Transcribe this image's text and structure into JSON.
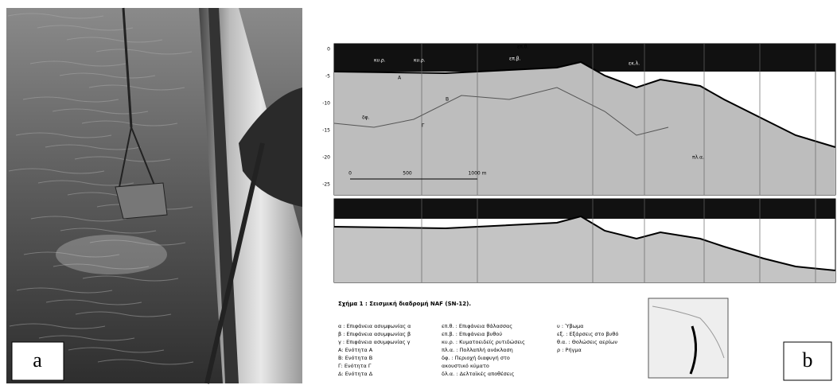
{
  "panel_a": {
    "label": "a"
  },
  "panel_b": {
    "label": "b",
    "profile_top": {
      "depth_labels": [
        "0",
        "-5",
        "-10",
        "-15",
        "-20",
        "-25"
      ],
      "scale_labels": [
        "0",
        "500",
        "1000 m"
      ],
      "annotations": [
        "επ.θ.",
        "κυ.ρ.",
        "κυ.ρ.",
        "επ.β.",
        "εκ.λ.",
        "Α",
        "Β",
        "Γ",
        "δφ.",
        "πλ.α."
      ]
    },
    "caption": "Σχήμα 1 : Σεισμική διαδρομή NAF (SN-12).",
    "legend": [
      [
        "α : Επιφάνεια ασυμφωνίας α",
        "β : Επιφάνεια ασυμφωνίας β",
        "γ : Επιφάνεια ασυμφωνίας γ",
        "Α: Ενότητα Α",
        "Β: Ενότητα Β",
        "Γ: Ενότητα Γ",
        "Δ: Ενότητα Δ"
      ],
      [
        "επ.θ. : Επιφάνεια θάλασσας",
        "επ.β. : Επιφάνεια βυθού",
        "κυ.ρ. : Κυματοειδείς ρυτιδώσεις",
        "πλ.α. : Πολλαπλή ανάκλαση",
        "δφ. : Περιοχή διαφυγή στο",
        "ακουστικό κύματο",
        "δλ.α. : Δελταϊκές αποθέσεις"
      ],
      [
        "υ : Ύβωμα",
        "εξ. : Εξάρσεις στο βυθό",
        "θ.α. : Θολώσεις αερίων",
        "ρ : Ρήγμα"
      ]
    ]
  }
}
